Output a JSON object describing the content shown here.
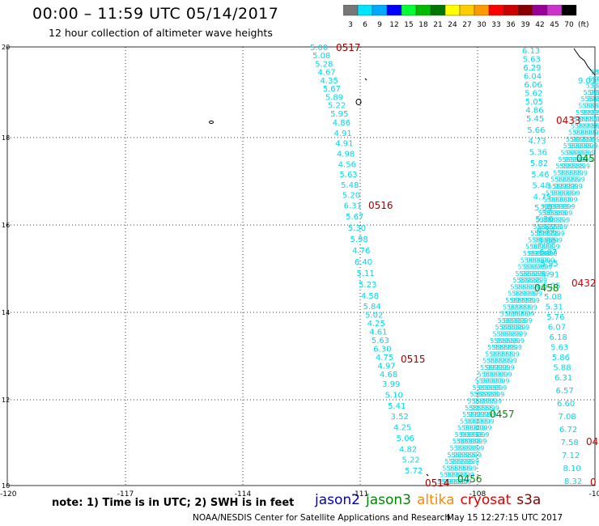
{
  "header": {
    "title": "00:00 – 11:59 UTC 05/14/2017",
    "subtitle": "12 hour collection of altimeter wave heights"
  },
  "colorbar": {
    "labels": [
      "3",
      "6",
      "9",
      "12",
      "15",
      "18",
      "21",
      "24",
      "27",
      "30",
      "33",
      "36",
      "39",
      "42",
      "45",
      "70"
    ],
    "unit": "(ft)",
    "colors": [
      "#777777",
      "#00e5ff",
      "#00aaff",
      "#0000ff",
      "#00ff33",
      "#00bb00",
      "#007700",
      "#ffff00",
      "#ffcc00",
      "#ff9900",
      "#ff0000",
      "#cc0000",
      "#880000",
      "#990099",
      "#cc33cc",
      "#000000"
    ]
  },
  "note": "note: 1) Time is in UTC; 2) SWH is in feet",
  "satellites": [
    {
      "name": "jason2",
      "color": "#0000cc"
    },
    {
      "name": "jason3",
      "color": "#008800"
    },
    {
      "name": "altika",
      "color": "#ff8800"
    },
    {
      "name": "cryosat",
      "color": "#dd0000"
    },
    {
      "name": "s3a",
      "color": "#880000"
    }
  ],
  "footer": {
    "left": "NOAA/NESDIS Center for Satellite Applications and Research",
    "right": "May 15 12:27:15 UTC 2017"
  },
  "chart_data": {
    "type": "scatter",
    "x_ticks": [
      "-120",
      "-117",
      "-114",
      "-111",
      "-108",
      "-10"
    ],
    "y_ticks": [
      "20",
      "18",
      "16",
      "14",
      "12",
      "10"
    ],
    "xlim": [
      -120,
      -108
    ],
    "ylim": [
      10,
      20
    ],
    "grid": true,
    "track_color": "#00d8e8",
    "tracks": [
      {
        "name": "s3a-descending",
        "time_labels": [
          {
            "text": "0517",
            "color": "#990000"
          },
          {
            "text": "0516",
            "color": "#990000"
          },
          {
            "text": "0515",
            "color": "#990000"
          },
          {
            "text": "0514",
            "color": "#990000"
          }
        ],
        "values": [
          "5.00",
          "5.08",
          "5.28",
          "4.67",
          "4.35",
          "5.67",
          "5.89",
          "5.22",
          "5.95",
          "4.86",
          "4.91",
          "4.91",
          "4.98",
          "4.56",
          "5.63",
          "5.48",
          "5.20",
          "6.31",
          "5.67",
          "5.30",
          "5.98",
          "4.76",
          "6.40",
          "5.11",
          "5.23",
          "4.58",
          "5.84",
          "5.02",
          "4.25",
          "4.61",
          "5.63",
          "6.30",
          "4.75",
          "4.97",
          "4.68",
          "3.99",
          "5.10",
          "5.41",
          "3.52",
          "4.25",
          "5.06",
          "4.82",
          "5.22",
          "5.72"
        ]
      },
      {
        "name": "cryosat-descending",
        "time_labels": [
          {
            "text": "0433",
            "color": "#cc0000"
          },
          {
            "text": "0432",
            "color": "#cc0000"
          },
          {
            "text": "04",
            "color": "#cc0000"
          },
          {
            "text": "0",
            "color": "#cc0000"
          }
        ],
        "values": [
          "6.13",
          "5.63",
          "6.29",
          "6.04",
          "6.06",
          "5.62",
          "5.05",
          "4.86",
          "5.45",
          "5.66",
          "4.73",
          "5.36",
          "5.82",
          "5.46",
          "5.48",
          "4.75",
          "5.50",
          "5.36",
          "6.34",
          "5.60",
          "6.07",
          "5.95",
          "5.91",
          "5.05",
          "5.08",
          "5.31",
          "5.76",
          "6.07",
          "6.18",
          "5.63",
          "5.86",
          "5.88",
          "6.31",
          "6.57",
          "6.60",
          "7.08",
          "6.72",
          "7.58",
          "7.12",
          "8.10",
          "8.32"
        ]
      },
      {
        "name": "jason3-ascending",
        "time_labels": [
          {
            "text": "0456",
            "color": "#008800"
          },
          {
            "text": "0457",
            "color": "#008800"
          },
          {
            "text": "0458",
            "color": "#008800"
          },
          {
            "text": "045",
            "color": "#008800"
          }
        ],
        "values": [
          "9.01"
        ]
      }
    ]
  }
}
